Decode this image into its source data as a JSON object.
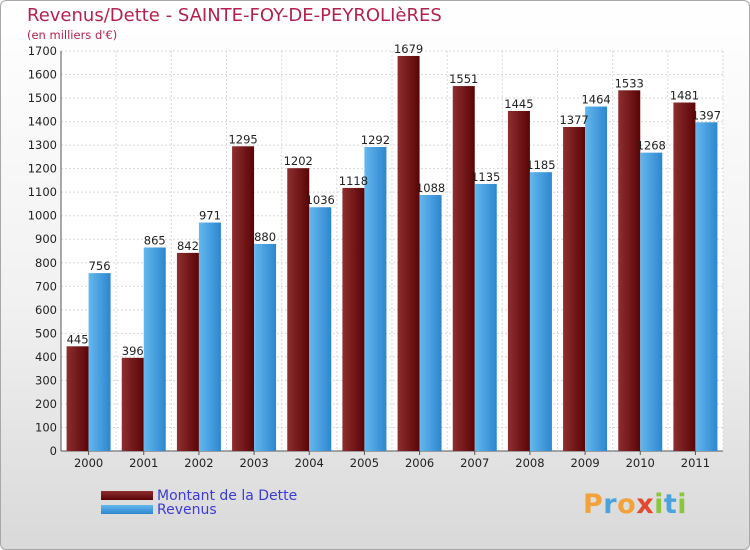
{
  "colors": {
    "title": "#b3224f",
    "debt_light": "#8e2e30",
    "debt_dark": "#5a0406",
    "revenue_light": "#64b8ee",
    "revenue_dark": "#2d86cf",
    "legend_text": "#3b3bd6"
  },
  "chart_data": {
    "type": "bar",
    "title": "Revenus/Dette - SAINTE-FOY-DE-PEYROLIèRES",
    "subtitle": "(en milliers d'€)",
    "categories": [
      "2000",
      "2001",
      "2002",
      "2003",
      "2004",
      "2005",
      "2006",
      "2007",
      "2008",
      "2009",
      "2010",
      "2011"
    ],
    "series": [
      {
        "name": "Montant de la Dette",
        "values": [
          445,
          396,
          842,
          1295,
          1202,
          1118,
          1679,
          1551,
          1445,
          1377,
          1533,
          1481
        ]
      },
      {
        "name": "Revenus",
        "values": [
          756,
          865,
          971,
          880,
          1036,
          1292,
          1088,
          1135,
          1185,
          1464,
          1268,
          1397
        ]
      }
    ],
    "ylim": [
      0,
      1700
    ],
    "yticks": [
      0,
      100,
      200,
      300,
      400,
      500,
      600,
      700,
      800,
      900,
      1000,
      1100,
      1200,
      1300,
      1400,
      1500,
      1600,
      1700
    ],
    "xlabel": "",
    "ylabel": "",
    "grid": true,
    "legend": "bottom-left"
  },
  "logo": {
    "letters": [
      "P",
      "r",
      "o",
      "x",
      "i",
      "t",
      "i"
    ],
    "colors": [
      "#f2a23a",
      "#4aa3df",
      "#f2a23a",
      "#e14a2e",
      "#8cc63f",
      "#4aa3df",
      "#8cc63f"
    ]
  }
}
